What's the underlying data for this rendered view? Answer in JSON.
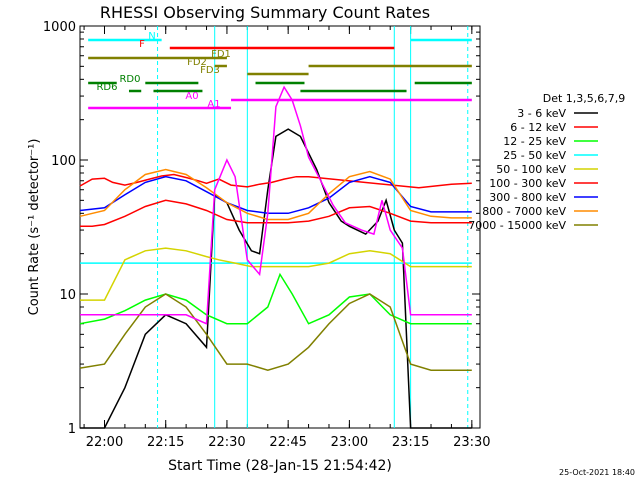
{
  "chart_data": {
    "type": "line",
    "title": "RHESSI Observing Summary Count Rates",
    "xlabel": "Start Time (28-Jan-15 21:54:42)",
    "ylabel": "Count Rate (s⁻¹ detector⁻¹)",
    "ylog": true,
    "ylim": [
      1,
      1000
    ],
    "y_tick_labels": [
      "1",
      "10",
      "100",
      "1000"
    ],
    "xlim": [
      "21:54",
      "23:32"
    ],
    "x_tick_labels": [
      "22:00",
      "22:15",
      "22:30",
      "22:45",
      "23:00",
      "23:15",
      "23:30"
    ],
    "date_stamp": "25-Oct-2021 18:40",
    "legend": {
      "title": "Det 1,3,5,6,7,9",
      "position": "right"
    },
    "series": [
      {
        "name": "3 - 6 keV",
        "color": "#000000",
        "points": [
          [
            "21:54",
            1.0
          ],
          [
            "22:00",
            1.0
          ],
          [
            "22:05",
            2
          ],
          [
            "22:10",
            5
          ],
          [
            "22:15",
            7
          ],
          [
            "22:20",
            6
          ],
          [
            "22:25",
            4
          ],
          [
            "22:27",
            55
          ],
          [
            "22:30",
            48
          ],
          [
            "22:33",
            30
          ],
          [
            "22:36",
            21
          ],
          [
            "22:38",
            20
          ],
          [
            "22:40",
            60
          ],
          [
            "22:42",
            150
          ],
          [
            "22:45",
            170
          ],
          [
            "22:48",
            150
          ],
          [
            "22:52",
            85
          ],
          [
            "22:55",
            48
          ],
          [
            "22:58",
            35
          ],
          [
            "23:00",
            32
          ],
          [
            "23:04",
            28
          ],
          [
            "23:07",
            35
          ],
          [
            "23:09",
            50
          ],
          [
            "23:11",
            30
          ],
          [
            "23:13",
            24
          ],
          [
            "23:15",
            1
          ],
          [
            "23:20",
            1.0
          ],
          [
            "23:25",
            1.0
          ],
          [
            "23:30",
            1.0
          ]
        ]
      },
      {
        "name": "6 - 12 keV",
        "color": "#ff0000",
        "points": [
          [
            "21:54",
            64
          ],
          [
            "21:57",
            72
          ],
          [
            "22:00",
            73
          ],
          [
            "22:02",
            68
          ],
          [
            "22:05",
            65
          ],
          [
            "22:08",
            68
          ],
          [
            "22:11",
            72
          ],
          [
            "22:14",
            76
          ],
          [
            "22:17",
            78
          ],
          [
            "22:20",
            74
          ],
          [
            "22:23",
            70
          ],
          [
            "22:25",
            67
          ],
          [
            "22:28",
            72
          ],
          [
            "22:31",
            65
          ],
          [
            "22:35",
            63
          ],
          [
            "22:38",
            66
          ],
          [
            "22:41",
            68
          ],
          [
            "22:44",
            72
          ],
          [
            "22:47",
            75
          ],
          [
            "22:50",
            75
          ],
          [
            "23:17",
            62
          ],
          [
            "23:21",
            64
          ],
          [
            "23:25",
            66
          ],
          [
            "23:30",
            67
          ]
        ]
      },
      {
        "name": "12 - 25 keV",
        "color": "#00ff00",
        "points": [
          [
            "21:54",
            6
          ],
          [
            "22:00",
            6.5
          ],
          [
            "22:05",
            7.5
          ],
          [
            "22:10",
            9
          ],
          [
            "22:15",
            10
          ],
          [
            "22:20",
            9
          ],
          [
            "22:25",
            7
          ],
          [
            "22:30",
            6
          ],
          [
            "22:35",
            6
          ],
          [
            "22:40",
            8
          ],
          [
            "22:43",
            14
          ],
          [
            "22:46",
            10
          ],
          [
            "22:50",
            6
          ],
          [
            "22:55",
            7
          ],
          [
            "23:00",
            9.5
          ],
          [
            "23:05",
            10
          ],
          [
            "23:10",
            7
          ],
          [
            "23:15",
            6
          ],
          [
            "23:20",
            6
          ],
          [
            "23:25",
            6
          ],
          [
            "23:30",
            6
          ]
        ]
      },
      {
        "name": "25 - 50 keV",
        "color": "#00ffff",
        "points": [
          [
            "21:54",
            17
          ],
          [
            "22:00",
            17
          ],
          [
            "22:05",
            17
          ],
          [
            "22:10",
            17
          ],
          [
            "22:15",
            17
          ],
          [
            "22:20",
            17
          ],
          [
            "22:25",
            17
          ],
          [
            "22:30",
            17
          ],
          [
            "22:35",
            17
          ],
          [
            "22:40",
            17
          ],
          [
            "22:45",
            17
          ],
          [
            "22:50",
            17
          ],
          [
            "22:55",
            17
          ],
          [
            "23:00",
            17
          ],
          [
            "23:05",
            17
          ],
          [
            "23:10",
            17
          ],
          [
            "23:15",
            17
          ],
          [
            "23:20",
            17
          ],
          [
            "23:25",
            17
          ],
          [
            "23:30",
            17
          ]
        ]
      },
      {
        "name": "50 - 100 keV",
        "color": "#d4d400",
        "points": [
          [
            "21:54",
            9
          ],
          [
            "22:00",
            9
          ],
          [
            "22:05",
            18
          ],
          [
            "22:10",
            21
          ],
          [
            "22:15",
            22
          ],
          [
            "22:20",
            21
          ],
          [
            "22:25",
            19
          ],
          [
            "22:28",
            18
          ],
          [
            "22:32",
            17
          ],
          [
            "22:36",
            16
          ],
          [
            "22:40",
            16
          ],
          [
            "22:45",
            16
          ],
          [
            "22:50",
            16
          ],
          [
            "22:55",
            17
          ],
          [
            "23:00",
            20
          ],
          [
            "23:05",
            21
          ],
          [
            "23:10",
            20
          ],
          [
            "23:15",
            16
          ],
          [
            "23:20",
            16
          ],
          [
            "23:25",
            16
          ],
          [
            "23:30",
            16
          ]
        ]
      },
      {
        "name": "100 - 300 keV",
        "color": "#ff0000",
        "points": [
          [
            "21:54",
            32
          ],
          [
            "21:57",
            32
          ],
          [
            "22:00",
            33
          ],
          [
            "22:05",
            38
          ],
          [
            "22:10",
            45
          ],
          [
            "22:15",
            50
          ],
          [
            "22:20",
            47
          ],
          [
            "22:25",
            42
          ],
          [
            "22:30",
            36
          ],
          [
            "22:35",
            34
          ],
          [
            "22:40",
            34
          ],
          [
            "22:45",
            34
          ],
          [
            "22:50",
            35
          ],
          [
            "22:55",
            38
          ],
          [
            "23:00",
            44
          ],
          [
            "23:05",
            45
          ],
          [
            "23:10",
            40
          ],
          [
            "23:15",
            35
          ],
          [
            "23:20",
            34
          ],
          [
            "23:25",
            34
          ],
          [
            "23:30",
            34
          ]
        ]
      },
      {
        "name": "300 - 800 keV",
        "color": "#0000ff",
        "points": [
          [
            "21:54",
            42
          ],
          [
            "22:00",
            44
          ],
          [
            "22:05",
            55
          ],
          [
            "22:10",
            68
          ],
          [
            "22:15",
            75
          ],
          [
            "22:20",
            70
          ],
          [
            "22:25",
            58
          ],
          [
            "22:30",
            48
          ],
          [
            "22:35",
            42
          ],
          [
            "22:40",
            40
          ],
          [
            "22:45",
            40
          ],
          [
            "22:50",
            44
          ],
          [
            "22:55",
            52
          ],
          [
            "23:00",
            68
          ],
          [
            "23:05",
            75
          ],
          [
            "23:10",
            68
          ],
          [
            "23:15",
            45
          ],
          [
            "23:20",
            41
          ],
          [
            "23:25",
            41
          ],
          [
            "23:30",
            41
          ]
        ]
      },
      {
        "name": "800 - 7000 keV",
        "color": "#ff8c00",
        "points": [
          [
            "21:54",
            38
          ],
          [
            "22:00",
            42
          ],
          [
            "22:05",
            60
          ],
          [
            "22:10",
            78
          ],
          [
            "22:15",
            85
          ],
          [
            "22:20",
            78
          ],
          [
            "22:25",
            62
          ],
          [
            "22:30",
            48
          ],
          [
            "22:35",
            40
          ],
          [
            "22:40",
            36
          ],
          [
            "22:45",
            36
          ],
          [
            "22:50",
            40
          ],
          [
            "22:55",
            56
          ],
          [
            "23:00",
            75
          ],
          [
            "23:05",
            82
          ],
          [
            "23:10",
            72
          ],
          [
            "23:15",
            42
          ],
          [
            "23:20",
            38
          ],
          [
            "23:25",
            37
          ],
          [
            "23:30",
            37
          ]
        ]
      },
      {
        "name": "7000 - 15000 keV",
        "color": "#808000",
        "points": [
          [
            "21:54",
            2.8
          ],
          [
            "22:00",
            3.0
          ],
          [
            "22:05",
            5
          ],
          [
            "22:10",
            8
          ],
          [
            "22:15",
            10
          ],
          [
            "22:20",
            8
          ],
          [
            "22:25",
            5
          ],
          [
            "22:30",
            3
          ],
          [
            "22:35",
            3
          ],
          [
            "22:40",
            2.7
          ],
          [
            "22:45",
            3
          ],
          [
            "22:50",
            4
          ],
          [
            "22:55",
            6
          ],
          [
            "23:00",
            8.5
          ],
          [
            "23:05",
            10
          ],
          [
            "23:10",
            8
          ],
          [
            "23:15",
            3.0
          ],
          [
            "23:20",
            2.7
          ],
          [
            "23:25",
            2.7
          ],
          [
            "23:30",
            2.7
          ]
        ]
      },
      {
        "name": "",
        "color": "#ff00ff",
        "points": [
          [
            "21:54",
            7
          ],
          [
            "22:00",
            7
          ],
          [
            "22:10",
            7
          ],
          [
            "22:20",
            7
          ],
          [
            "22:25",
            6
          ],
          [
            "22:27",
            60
          ],
          [
            "22:30",
            100
          ],
          [
            "22:32",
            75
          ],
          [
            "22:35",
            18
          ],
          [
            "22:38",
            14
          ],
          [
            "22:40",
            40
          ],
          [
            "22:42",
            250
          ],
          [
            "22:44",
            350
          ],
          [
            "22:46",
            280
          ],
          [
            "22:48",
            180
          ],
          [
            "22:50",
            105
          ],
          [
            "22:53",
            70
          ],
          [
            "22:56",
            46
          ],
          [
            "22:59",
            34
          ],
          [
            "23:03",
            30
          ],
          [
            "23:06",
            28
          ],
          [
            "23:08",
            50
          ],
          [
            "23:10",
            30
          ],
          [
            "23:13",
            22
          ],
          [
            "23:15",
            7
          ],
          [
            "23:20",
            7
          ],
          [
            "23:25",
            7
          ],
          [
            "23:30",
            7
          ]
        ]
      }
    ],
    "flag_bars": [
      {
        "label": "N",
        "color": "#00ffff",
        "segments": [
          [
            "21:56",
            "22:14"
          ],
          [
            "23:15",
            "23:30"
          ]
        ]
      },
      {
        "label": "F",
        "color": "#ff0000",
        "segments": [
          [
            "22:16",
            "23:11"
          ]
        ]
      },
      {
        "label": "FD1",
        "color": "#808000",
        "segments": [
          [
            "21:56",
            "22:30"
          ]
        ]
      },
      {
        "label": "FD2",
        "color": "#808000",
        "segments": [
          [
            "22:27",
            "22:30"
          ],
          [
            "22:50",
            "23:30"
          ]
        ]
      },
      {
        "label": "FD3",
        "color": "#808000",
        "segments": [
          [
            "22:35",
            "22:50"
          ]
        ]
      },
      {
        "label": "RD0",
        "color": "#008000",
        "segments": [
          [
            "21:56",
            "22:03"
          ],
          [
            "22:10",
            "22:23"
          ],
          [
            "22:37",
            "22:49"
          ],
          [
            "23:16",
            "23:30"
          ]
        ]
      },
      {
        "label": "RD6",
        "color": "#008000",
        "segments": [
          [
            "22:06",
            "22:09"
          ],
          [
            "22:12",
            "22:24"
          ],
          [
            "22:48",
            "23:14"
          ]
        ]
      },
      {
        "label": "A0",
        "color": "#ff00ff",
        "segments": [
          [
            "22:31",
            "23:30"
          ]
        ]
      },
      {
        "label": "A1",
        "color": "#ff00ff",
        "segments": [
          [
            "21:56",
            "22:31"
          ]
        ]
      }
    ],
    "markers": [
      {
        "type": "vertical-dashed",
        "color": "#00ffff",
        "x": "22:13"
      },
      {
        "type": "vertical-dashed",
        "color": "#00ffff",
        "x": "23:29"
      },
      {
        "type": "vertical-solid",
        "color": "#00ffff",
        "x": "22:27"
      },
      {
        "type": "vertical-solid",
        "color": "#00ffff",
        "x": "22:35"
      },
      {
        "type": "vertical-solid",
        "color": "#00ffff",
        "x": "23:11"
      },
      {
        "type": "vertical-solid",
        "color": "#00ffff",
        "x": "23:15"
      }
    ]
  }
}
